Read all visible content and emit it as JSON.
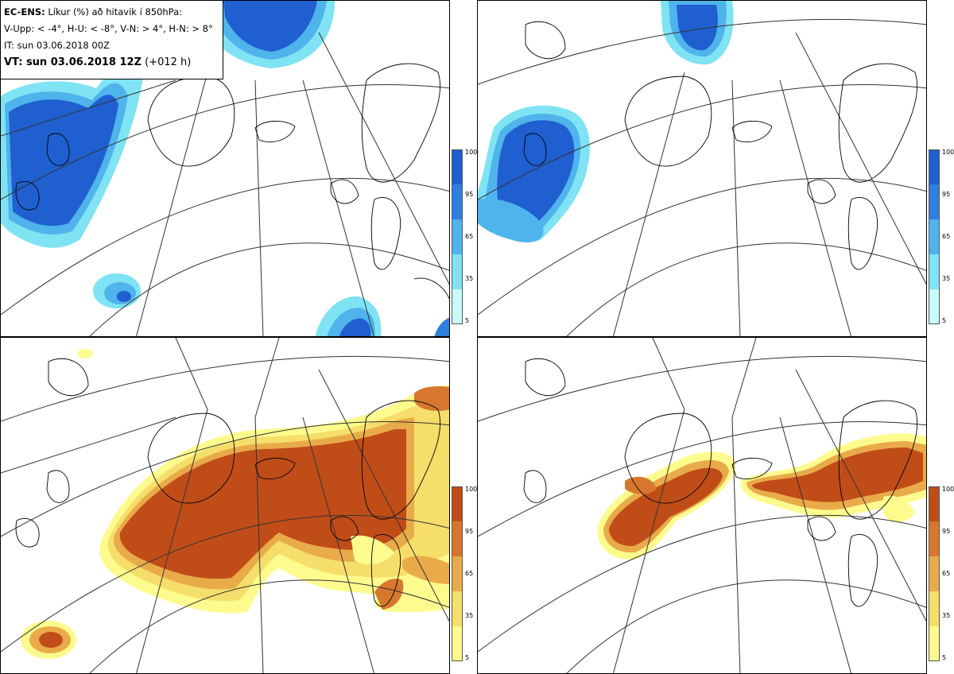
{
  "info": {
    "model": "EC-ENS:",
    "title_rest": "Líkur (%) að hitavik í 850hPa:",
    "categories_line": "V-Upp: < -4°, H-U: < -8°, V-N: > 4°, H-N: > 8°",
    "init_time": "IT: sun 03.06.2018 00Z",
    "valid_label": "VT: sun 03.06.2018 12Z",
    "lead_time": "(+012 h)"
  },
  "colorbars": {
    "cold": {
      "ticks": [
        "100",
        "95",
        "65",
        "35",
        "5"
      ],
      "colors": [
        "#1f5fcf",
        "#2f7fe0",
        "#4fb3ec",
        "#7fe3f3",
        "#c9fbfb"
      ]
    },
    "warm": {
      "ticks": [
        "100",
        "95",
        "65",
        "35",
        "5"
      ],
      "colors": [
        "#c04d18",
        "#d7772e",
        "#e9ab4a",
        "#f5de6a",
        "#fdfb8e"
      ]
    }
  },
  "panels": [
    {
      "id": "top-left",
      "variable": "V-Upp",
      "scheme": "cold"
    },
    {
      "id": "top-right",
      "variable": "H-U",
      "scheme": "cold"
    },
    {
      "id": "bottom-left",
      "variable": "V-N",
      "scheme": "warm"
    },
    {
      "id": "bottom-right",
      "variable": "H-N",
      "scheme": "warm"
    }
  ]
}
